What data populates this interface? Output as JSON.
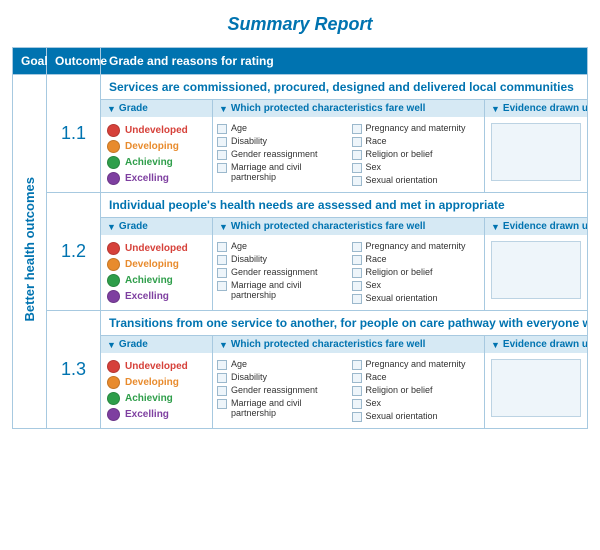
{
  "title": "Summary Report",
  "colors": {
    "brand": "#0073b0",
    "header_bg": "#0073b0",
    "header_text": "#ffffff",
    "border": "#a7c9e0",
    "subhead_bg": "#d6e9f4",
    "panel_bg": "#eef5fa"
  },
  "columns": {
    "goal": "Goal",
    "outcome": "Outcome",
    "reason": "Grade and reasons for rating"
  },
  "goal_label": "Better health outcomes",
  "sub_headers": {
    "grade": "Grade",
    "chars": "Which protected characteristics fare well",
    "evidence": "Evidence drawn u"
  },
  "grades": [
    {
      "label": "Undeveloped",
      "color": "#d6413a"
    },
    {
      "label": "Developing",
      "color": "#e88b2d"
    },
    {
      "label": "Achieving",
      "color": "#2e9e4a"
    },
    {
      "label": "Excelling",
      "color": "#7e3fa0"
    }
  ],
  "characteristics_col1": [
    "Age",
    "Disability",
    "Gender reassignment",
    "Marriage and civil partnership"
  ],
  "characteristics_col2": [
    "Pregnancy and maternity",
    "Race",
    "Religion or belief",
    "Sex",
    "Sexual orientation"
  ],
  "rows": [
    {
      "num": "1.1",
      "title": "Services are commissioned, procured, designed and delivered local communities"
    },
    {
      "num": "1.2",
      "title": "Individual people's health needs are assessed and met in appropriate"
    },
    {
      "num": "1.3",
      "title": "Transitions from one service to another, for people on care pathway with everyone well-informed"
    }
  ]
}
